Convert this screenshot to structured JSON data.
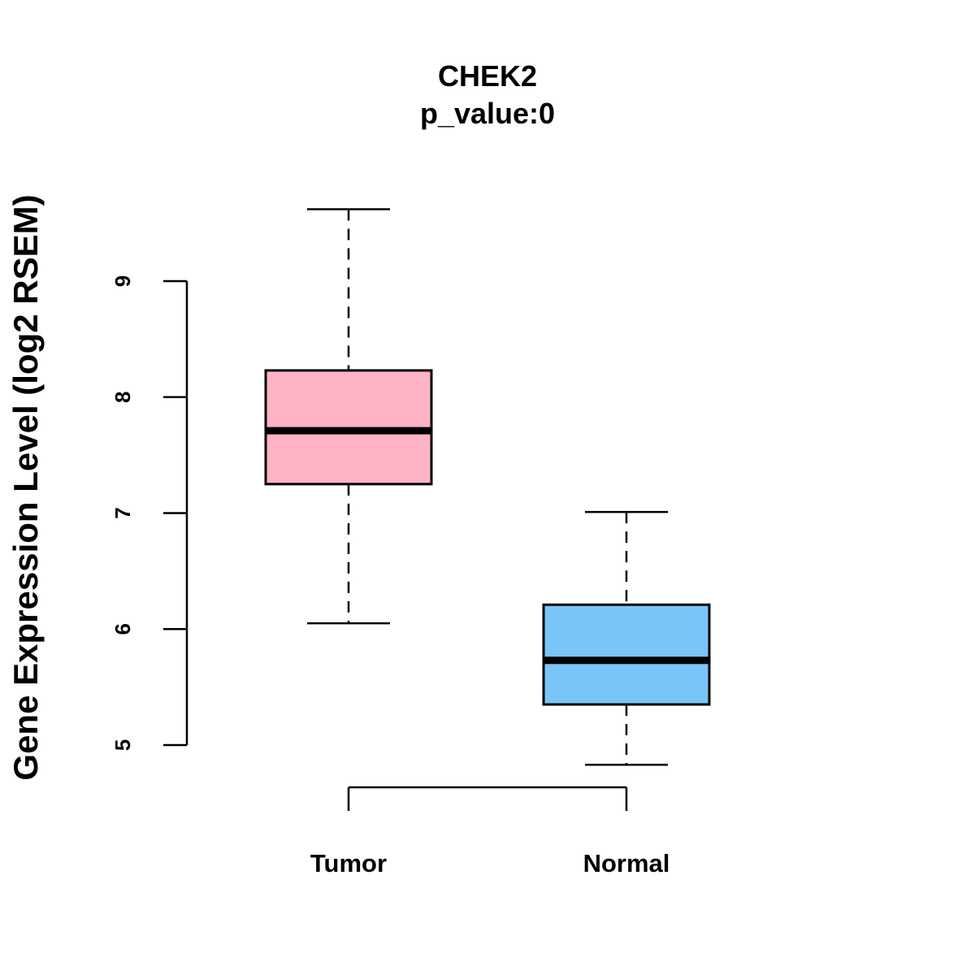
{
  "chart_data": {
    "type": "box",
    "title": "CHEK2",
    "subtitle": "p_value:0",
    "ylabel": "Gene Expression Level (log2 RSEM)",
    "xlabel": "",
    "ylim": [
      5,
      9
    ],
    "yticks": [
      "5",
      "6",
      "7",
      "8",
      "9"
    ],
    "categories": [
      "Tumor",
      "Normal"
    ],
    "series": [
      {
        "name": "Tumor",
        "whisker_low": 6.05,
        "q1": 7.25,
        "median": 7.71,
        "q3": 8.23,
        "whisker_high": 9.62,
        "color": "#FFB3C4"
      },
      {
        "name": "Normal",
        "whisker_low": 4.83,
        "q1": 5.35,
        "median": 5.73,
        "q3": 6.21,
        "whisker_high": 7.01,
        "color": "#7AC5F8"
      }
    ],
    "grid": false,
    "legend": "none"
  }
}
